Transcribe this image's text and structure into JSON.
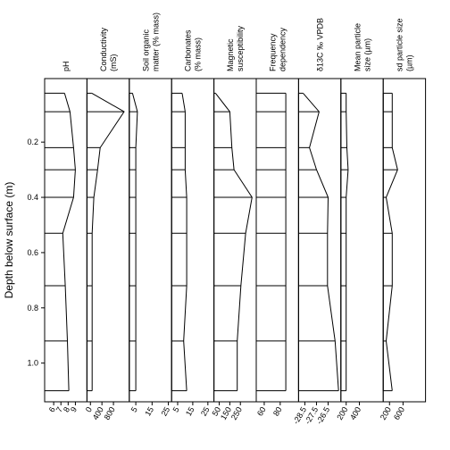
{
  "depth_axis": {
    "label": "Depth below surface (m)",
    "ylim": [
      -0.03,
      1.14
    ],
    "yticks": [
      0.2,
      0.4,
      0.6,
      0.8,
      {
        "value": 1,
        "label": "1.0"
      }
    ],
    "values": [
      0.023,
      0.09,
      0.22,
      0.3,
      0.4,
      0.53,
      0.72,
      0.92,
      1.1
    ]
  },
  "chart_data": [
    {
      "type": "line",
      "title": [
        "pH"
      ],
      "xlim": [
        4.75,
        10.6
      ],
      "xticks": [
        6,
        7,
        8,
        9
      ],
      "color": "#000000",
      "values": [
        7.5,
        8.25,
        8.75,
        9,
        8.75,
        7.25,
        7.6,
        7.9,
        8.1
      ]
    },
    {
      "type": "line",
      "title": [
        "Conductivity",
        "(mS)"
      ],
      "xlim": [
        -120,
        1350
      ],
      "xticks": [
        0,
        400,
        800
      ],
      "color": "#000000",
      "values": [
        50,
        1170,
        340,
        250,
        120,
        60,
        60,
        60,
        60
      ]
    },
    {
      "type": "line",
      "title": [
        "Soil organic",
        "matter (% mass)"
      ],
      "xlim": [
        1,
        27
      ],
      "xticks": [
        5,
        15,
        25
      ],
      "color": "#000000",
      "values": [
        3,
        6,
        5,
        5,
        5,
        5,
        5,
        5,
        5
      ]
    },
    {
      "type": "line",
      "title": [
        "Carbonates",
        "(% mass)"
      ],
      "xlim": [
        1,
        29
      ],
      "xticks": [
        5,
        15,
        25
      ],
      "color": "#000000",
      "values": [
        8,
        10,
        10,
        10,
        11,
        11,
        11,
        9,
        11
      ]
    },
    {
      "type": "line",
      "title": [
        "Magnetic",
        "susceptibility"
      ],
      "xlim": [
        0,
        400
      ],
      "xticks": [
        50,
        150,
        250
      ],
      "color": "#000000",
      "values": [
        15,
        150,
        170,
        190,
        360,
        300,
        255,
        220,
        220
      ]
    },
    {
      "type": "line",
      "title": [
        "Frequency",
        "dependency"
      ],
      "xlim": [
        50,
        103
      ],
      "xticks": [
        60,
        80
      ],
      "color": "#000000",
      "values": [
        87,
        87,
        87,
        87,
        87,
        87,
        87,
        87,
        87
      ]
    },
    {
      "type": "line",
      "title": [
        "δ13C ‰ VPDB"
      ],
      "xlim": [
        -29.04,
        -25.4
      ],
      "xticks": [
        -28.5,
        -27.5,
        -26.5
      ],
      "color": "#000000",
      "values": [
        -28.65,
        -27.27,
        -28.1,
        -27.5,
        -26.5,
        -26.55,
        -26.55,
        -25.9,
        -25.6
      ]
    },
    {
      "type": "line",
      "title": [
        "Mean particle",
        "size (µm)"
      ],
      "xlim": [
        120,
        760
      ],
      "xticks": [
        200,
        400
      ],
      "color": "#000000",
      "values": [
        200,
        200,
        210,
        230,
        200,
        200,
        200,
        200,
        200
      ]
    },
    {
      "type": "line",
      "title": [
        "sd particle size",
        "(µm)"
      ],
      "xlim": [
        13,
        1267
      ],
      "xticks": [
        200,
        600
      ],
      "color": "#000000",
      "values": [
        280,
        280,
        280,
        440,
        100,
        280,
        280,
        100,
        280
      ]
    }
  ]
}
